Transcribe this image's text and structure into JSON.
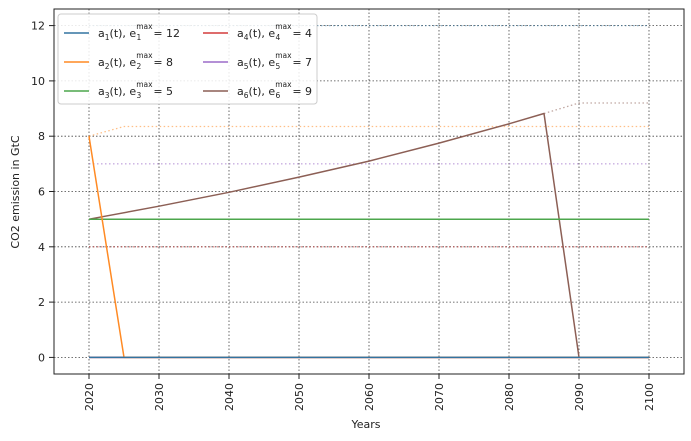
{
  "chart_data": {
    "type": "line",
    "xlabel": "Years",
    "ylabel": "CO2 emission in GtC",
    "xlim": [
      2015,
      2105
    ],
    "ylim": [
      -0.6,
      12.6
    ],
    "x_ticks": [
      2020,
      2030,
      2040,
      2050,
      2060,
      2070,
      2080,
      2090,
      2100
    ],
    "y_ticks": [
      0,
      2,
      4,
      6,
      8,
      10,
      12
    ],
    "grid": true,
    "legend_position": "top-left",
    "series": [
      {
        "name": "a1(t), e1max = 12",
        "label_main": "a",
        "label_idx": "1",
        "label_e": "e",
        "label_sup": "max",
        "label_val": "= 12",
        "color": "#3274a1",
        "x": [
          2020,
          2100
        ],
        "y": [
          0,
          0
        ],
        "max_x": [
          2020,
          2100
        ],
        "max_y": [
          12,
          12
        ]
      },
      {
        "name": "a2(t), e2max = 8",
        "label_main": "a",
        "label_idx": "2",
        "label_e": "e",
        "label_sup": "max",
        "label_val": "= 8",
        "color": "#ff8a24",
        "x": [
          2020,
          2025,
          2100
        ],
        "y": [
          8,
          0,
          0
        ],
        "max_x": [
          2020,
          2025,
          2100
        ],
        "max_y": [
          8,
          8.35,
          8.35
        ]
      },
      {
        "name": "a3(t), e3max = 5",
        "label_main": "a",
        "label_idx": "3",
        "label_e": "e",
        "label_sup": "max",
        "label_val": "= 5",
        "color": "#4ca64c",
        "x": [
          2020,
          2100
        ],
        "y": [
          5,
          5
        ],
        "max_x": [
          2020,
          2100
        ],
        "max_y": [
          5,
          5
        ]
      },
      {
        "name": "a4(t), e4max = 4",
        "label_main": "a",
        "label_idx": "4",
        "label_e": "e",
        "label_sup": "max",
        "label_val": "= 4",
        "color": "#d43b3b",
        "x": [
          2020,
          2100
        ],
        "y": [
          0,
          0
        ],
        "max_x": [
          2020,
          2100
        ],
        "max_y": [
          4,
          4
        ]
      },
      {
        "name": "a5(t), e5max = 7",
        "label_main": "a",
        "label_idx": "5",
        "label_e": "e",
        "label_sup": "max",
        "label_val": "= 7",
        "color": "#9b6cc8",
        "x": [
          2020,
          2100
        ],
        "y": [
          0,
          0
        ],
        "max_x": [
          2020,
          2100
        ],
        "max_y": [
          7,
          7
        ]
      },
      {
        "name": "a6(t), e6max = 9",
        "label_main": "a",
        "label_idx": "6",
        "label_e": "e",
        "label_sup": "max",
        "label_val": "= 9",
        "color": "#8c5f55",
        "x": [
          2020,
          2030,
          2040,
          2050,
          2060,
          2070,
          2080,
          2085,
          2090,
          2100
        ],
        "y": [
          5,
          5.47,
          5.97,
          6.52,
          7.1,
          7.75,
          8.45,
          8.82,
          0,
          0
        ],
        "max_x": [
          2085,
          2090,
          2100
        ],
        "max_y": [
          8.82,
          9.2,
          9.2
        ]
      }
    ]
  }
}
